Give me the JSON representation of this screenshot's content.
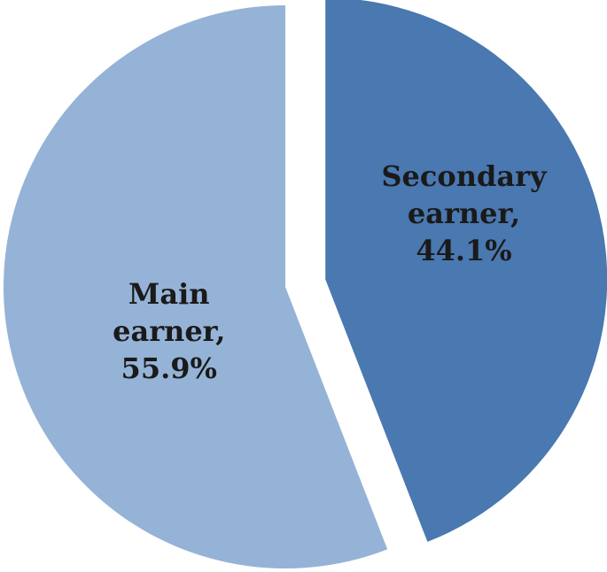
{
  "chart_data": {
    "type": "pie",
    "categories": [
      "Secondary earner,",
      "Main earner,"
    ],
    "values": [
      44.1,
      55.9
    ],
    "value_labels": [
      "44.1%",
      "55.9%"
    ],
    "colors": [
      "#4a78b0",
      "#95b3d7"
    ]
  }
}
